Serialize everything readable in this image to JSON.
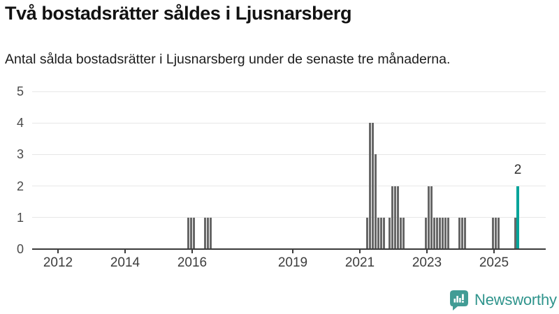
{
  "header": {
    "title": "Två bostadsrätter såldes i Ljusnarsberg",
    "subtitle": "Antal sålda bostadsrätter i Ljusnarsberg under de senaste tre månaderna."
  },
  "chart_data": {
    "type": "bar",
    "title": "Två bostadsrätter såldes i Ljusnarsberg",
    "subtitle": "Antal sålda bostadsrätter i Ljusnarsberg under de senaste tre månaderna.",
    "xlabel": "",
    "ylabel": "",
    "ylim": [
      0,
      5
    ],
    "y_ticks": [
      0,
      1,
      2,
      3,
      4,
      5
    ],
    "x_tick_years": [
      2012,
      2014,
      2016,
      2019,
      2021,
      2023,
      2025
    ],
    "grid": true,
    "legend": "none",
    "bar_color": "#676767",
    "highlight_color": "#00a49a",
    "points": [
      {
        "month": "2015-11",
        "value": 1
      },
      {
        "month": "2015-12",
        "value": 1
      },
      {
        "month": "2016-01",
        "value": 1
      },
      {
        "month": "2016-05",
        "value": 1
      },
      {
        "month": "2016-06",
        "value": 1
      },
      {
        "month": "2016-07",
        "value": 1
      },
      {
        "month": "2021-03",
        "value": 1
      },
      {
        "month": "2021-04",
        "value": 4
      },
      {
        "month": "2021-05",
        "value": 4
      },
      {
        "month": "2021-06",
        "value": 3
      },
      {
        "month": "2021-07",
        "value": 1
      },
      {
        "month": "2021-08",
        "value": 1
      },
      {
        "month": "2021-09",
        "value": 1
      },
      {
        "month": "2021-11",
        "value": 1
      },
      {
        "month": "2021-12",
        "value": 2
      },
      {
        "month": "2022-01",
        "value": 2
      },
      {
        "month": "2022-02",
        "value": 2
      },
      {
        "month": "2022-03",
        "value": 1
      },
      {
        "month": "2022-04",
        "value": 1
      },
      {
        "month": "2022-12",
        "value": 1
      },
      {
        "month": "2023-01",
        "value": 2
      },
      {
        "month": "2023-02",
        "value": 2
      },
      {
        "month": "2023-03",
        "value": 1
      },
      {
        "month": "2023-04",
        "value": 1
      },
      {
        "month": "2023-05",
        "value": 1
      },
      {
        "month": "2023-06",
        "value": 1
      },
      {
        "month": "2023-07",
        "value": 1
      },
      {
        "month": "2023-08",
        "value": 1
      },
      {
        "month": "2023-12",
        "value": 1
      },
      {
        "month": "2024-01",
        "value": 1
      },
      {
        "month": "2024-02",
        "value": 1
      },
      {
        "month": "2024-12",
        "value": 1
      },
      {
        "month": "2025-01",
        "value": 1
      },
      {
        "month": "2025-02",
        "value": 1
      },
      {
        "month": "2025-08",
        "value": 1
      },
      {
        "month": "2025-09",
        "value": 2,
        "highlight": true
      }
    ],
    "annotation": {
      "text": "2",
      "month": "2025-09",
      "value": 2
    }
  },
  "footer": {
    "brand": "Newsworthy",
    "logo_icon": "bar-chart-speech-bubble-icon",
    "brand_color": "#2f948c"
  }
}
